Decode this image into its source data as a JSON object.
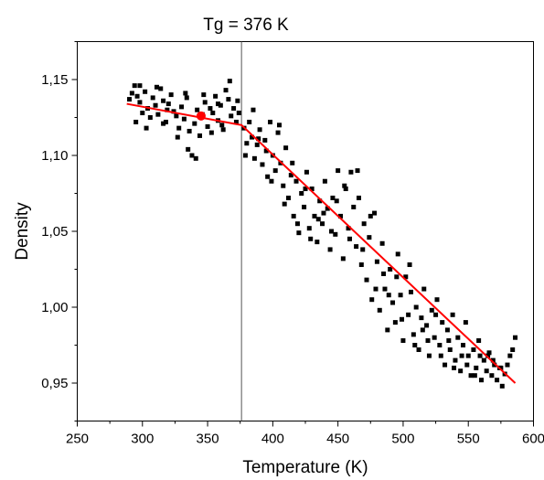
{
  "chart_data": {
    "type": "scatter",
    "title": "Tg = 376 K",
    "xlabel": "Temperature (K)",
    "ylabel": "Density",
    "xlim": [
      250,
      600
    ],
    "ylim": [
      0.925,
      1.175
    ],
    "x_ticks": [
      250,
      300,
      350,
      400,
      450,
      500,
      550,
      600
    ],
    "x_tick_labels": [
      "250",
      "300",
      "350",
      "400",
      "450",
      "500",
      "550",
      "600"
    ],
    "y_ticks": [
      0.95,
      1.0,
      1.05,
      1.1,
      1.15
    ],
    "y_tick_labels": [
      "0,95",
      "1,00",
      "1,05",
      "1,10",
      "1,15"
    ],
    "grid": false,
    "series": [
      {
        "marker": "square",
        "color": "#000000",
        "points": [
          [
            290,
            1.137
          ],
          [
            292,
            1.141
          ],
          [
            294,
            1.146
          ],
          [
            296,
            1.139
          ],
          [
            298,
            1.135
          ],
          [
            300,
            1.128
          ],
          [
            302,
            1.142
          ],
          [
            304,
            1.131
          ],
          [
            306,
            1.125
          ],
          [
            308,
            1.138
          ],
          [
            310,
            1.133
          ],
          [
            312,
            1.127
          ],
          [
            314,
            1.144
          ],
          [
            316,
            1.136
          ],
          [
            318,
            1.122
          ],
          [
            320,
            1.134
          ],
          [
            322,
            1.14
          ],
          [
            324,
            1.129
          ],
          [
            326,
            1.126
          ],
          [
            328,
            1.118
          ],
          [
            330,
            1.132
          ],
          [
            332,
            1.124
          ],
          [
            334,
            1.138
          ],
          [
            336,
            1.116
          ],
          [
            338,
            1.1
          ],
          [
            340,
            1.121
          ],
          [
            342,
            1.13
          ],
          [
            344,
            1.113
          ],
          [
            346,
            1.127
          ],
          [
            348,
            1.135
          ],
          [
            350,
            1.119
          ],
          [
            352,
            1.131
          ],
          [
            354,
            1.128
          ],
          [
            356,
            1.139
          ],
          [
            358,
            1.123
          ],
          [
            360,
            1.133
          ],
          [
            362,
            1.117
          ],
          [
            364,
            1.143
          ],
          [
            366,
            1.137
          ],
          [
            368,
            1.126
          ],
          [
            370,
            1.131
          ],
          [
            372,
            1.122
          ],
          [
            374,
            1.128
          ],
          [
            295,
            1.122
          ],
          [
            303,
            1.118
          ],
          [
            311,
            1.145
          ],
          [
            319,
            1.13
          ],
          [
            327,
            1.112
          ],
          [
            335,
            1.104
          ],
          [
            341,
            1.098
          ],
          [
            347,
            1.14
          ],
          [
            353,
            1.115
          ],
          [
            361,
            1.12
          ],
          [
            367,
            1.149
          ],
          [
            373,
            1.136
          ],
          [
            298,
            1.146
          ],
          [
            316,
            1.121
          ],
          [
            333,
            1.141
          ],
          [
            358,
            1.134
          ],
          [
            378,
            1.118
          ],
          [
            380,
            1.108
          ],
          [
            382,
            1.122
          ],
          [
            384,
            1.112
          ],
          [
            386,
            1.098
          ],
          [
            388,
            1.107
          ],
          [
            390,
            1.117
          ],
          [
            392,
            1.094
          ],
          [
            394,
            1.11
          ],
          [
            396,
            1.086
          ],
          [
            398,
            1.122
          ],
          [
            400,
            1.1
          ],
          [
            402,
            1.09
          ],
          [
            404,
            1.115
          ],
          [
            406,
            1.095
          ],
          [
            408,
            1.08
          ],
          [
            410,
            1.105
          ],
          [
            412,
            1.072
          ],
          [
            414,
            1.087
          ],
          [
            416,
            1.06
          ],
          [
            418,
            1.083
          ],
          [
            420,
            1.049
          ],
          [
            422,
            1.075
          ],
          [
            424,
            1.066
          ],
          [
            426,
            1.089
          ],
          [
            428,
            1.052
          ],
          [
            430,
            1.078
          ],
          [
            432,
            1.06
          ],
          [
            434,
            1.043
          ],
          [
            436,
            1.07
          ],
          [
            438,
            1.055
          ],
          [
            440,
            1.083
          ],
          [
            442,
            1.065
          ],
          [
            444,
            1.038
          ],
          [
            446,
            1.072
          ],
          [
            448,
            1.048
          ],
          [
            450,
            1.09
          ],
          [
            452,
            1.06
          ],
          [
            454,
            1.032
          ],
          [
            456,
            1.078
          ],
          [
            458,
            1.052
          ],
          [
            460,
            1.089
          ],
          [
            462,
            1.066
          ],
          [
            464,
            1.04
          ],
          [
            466,
            1.072
          ],
          [
            468,
            1.028
          ],
          [
            470,
            1.055
          ],
          [
            472,
            1.018
          ],
          [
            474,
            1.046
          ],
          [
            476,
            1.005
          ],
          [
            478,
            1.062
          ],
          [
            480,
            1.03
          ],
          [
            482,
            0.998
          ],
          [
            484,
            1.042
          ],
          [
            486,
            1.012
          ],
          [
            488,
            0.985
          ],
          [
            490,
            1.025
          ],
          [
            492,
            1.003
          ],
          [
            494,
            0.99
          ],
          [
            496,
            1.035
          ],
          [
            498,
            1.008
          ],
          [
            500,
            0.978
          ],
          [
            502,
            1.02
          ],
          [
            504,
            0.995
          ],
          [
            506,
            1.01
          ],
          [
            508,
            0.982
          ],
          [
            510,
            1.0
          ],
          [
            512,
            0.972
          ],
          [
            514,
            0.993
          ],
          [
            516,
            1.012
          ],
          [
            518,
            0.988
          ],
          [
            520,
            0.968
          ],
          [
            522,
            0.998
          ],
          [
            524,
            0.98
          ],
          [
            526,
            1.005
          ],
          [
            528,
            0.975
          ],
          [
            530,
            0.99
          ],
          [
            532,
            0.962
          ],
          [
            534,
            0.985
          ],
          [
            536,
            0.972
          ],
          [
            538,
            0.995
          ],
          [
            540,
            0.965
          ],
          [
            542,
            0.98
          ],
          [
            544,
            0.958
          ],
          [
            546,
            0.975
          ],
          [
            548,
            0.99
          ],
          [
            550,
            0.968
          ],
          [
            552,
            0.955
          ],
          [
            554,
            0.972
          ],
          [
            556,
            0.96
          ],
          [
            558,
            0.978
          ],
          [
            560,
            0.952
          ],
          [
            562,
            0.965
          ],
          [
            564,
            0.958
          ],
          [
            566,
            0.97
          ],
          [
            568,
            0.955
          ],
          [
            570,
            0.962
          ],
          [
            572,
            0.952
          ],
          [
            574,
            0.96
          ],
          [
            576,
            0.948
          ],
          [
            578,
            0.956
          ],
          [
            580,
            0.962
          ],
          [
            582,
            0.968
          ],
          [
            584,
            0.972
          ],
          [
            586,
            0.98
          ],
          [
            385,
            1.13
          ],
          [
            395,
            1.103
          ],
          [
            405,
            1.12
          ],
          [
            415,
            1.095
          ],
          [
            425,
            1.078
          ],
          [
            435,
            1.058
          ],
          [
            445,
            1.05
          ],
          [
            455,
            1.08
          ],
          [
            465,
            1.09
          ],
          [
            475,
            1.06
          ],
          [
            485,
            1.022
          ],
          [
            495,
            1.02
          ],
          [
            505,
            1.028
          ],
          [
            515,
            0.985
          ],
          [
            525,
            0.995
          ],
          [
            535,
            0.978
          ],
          [
            545,
            0.968
          ],
          [
            555,
            0.955
          ],
          [
            565,
            0.968
          ],
          [
            575,
            0.96
          ],
          [
            379,
            1.1
          ],
          [
            389,
            1.111
          ],
          [
            399,
            1.083
          ],
          [
            409,
            1.068
          ],
          [
            419,
            1.055
          ],
          [
            429,
            1.045
          ],
          [
            439,
            1.062
          ],
          [
            449,
            1.07
          ],
          [
            459,
            1.045
          ],
          [
            469,
            1.038
          ],
          [
            479,
            1.012
          ],
          [
            489,
            1.008
          ],
          [
            499,
            0.992
          ],
          [
            509,
            0.975
          ],
          [
            519,
            0.978
          ],
          [
            529,
            0.968
          ],
          [
            539,
            0.96
          ],
          [
            549,
            0.962
          ],
          [
            559,
            0.968
          ],
          [
            569,
            0.965
          ]
        ]
      },
      {
        "type": "line",
        "color": "#ff0000",
        "points": [
          [
            288,
            1.134
          ],
          [
            376,
            1.12
          ],
          [
            586,
            0.95
          ]
        ]
      },
      {
        "type": "point",
        "color": "#ff0000",
        "points": [
          [
            345,
            1.126
          ]
        ]
      }
    ],
    "annotations": [
      {
        "type": "vline",
        "x": 376,
        "color": "#555555"
      }
    ]
  }
}
